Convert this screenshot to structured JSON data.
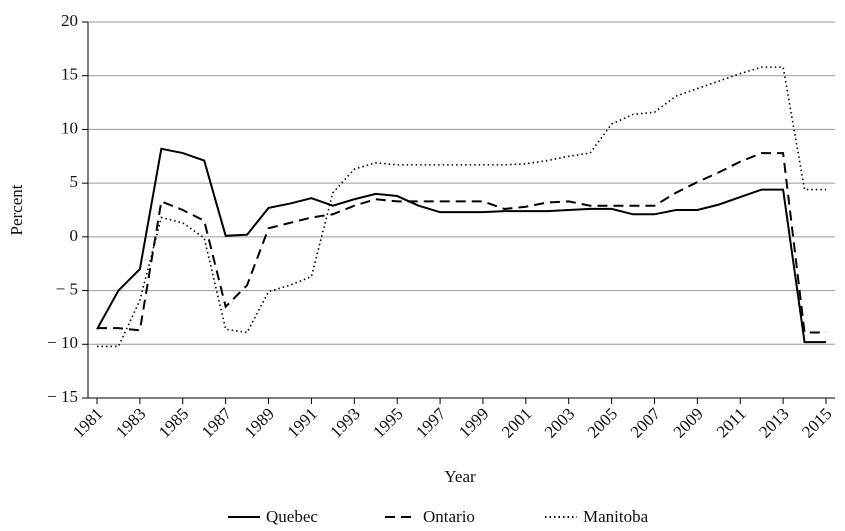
{
  "chart_data": {
    "type": "line",
    "x_label": "Year",
    "y_label": "Percent",
    "x": [
      1981,
      1982,
      1983,
      1984,
      1985,
      1986,
      1987,
      1988,
      1989,
      1990,
      1991,
      1992,
      1993,
      1994,
      1995,
      1996,
      1997,
      1998,
      1999,
      2000,
      2001,
      2002,
      2003,
      2004,
      2005,
      2006,
      2007,
      2008,
      2009,
      2010,
      2011,
      2012,
      2013,
      2014,
      2015
    ],
    "xlim": [
      1981,
      2015
    ],
    "xticks": [
      1981,
      1983,
      1985,
      1987,
      1989,
      1991,
      1993,
      1995,
      1997,
      1999,
      2001,
      2003,
      2005,
      2007,
      2009,
      2011,
      2013,
      2015
    ],
    "ylim": [
      -15,
      20
    ],
    "yticks": [
      {
        "value": -15,
        "label": "− 15"
      },
      {
        "value": -10,
        "label": "− 10"
      },
      {
        "value": -5,
        "label": "− 5"
      },
      0,
      5,
      10,
      15,
      20
    ],
    "grid": true,
    "series": [
      {
        "name": "Quebec",
        "color": "#000000",
        "dash": "solid",
        "values": [
          -8.6,
          -5,
          -3,
          8.2,
          7.8,
          7.1,
          0.1,
          0.2,
          2.7,
          3.1,
          3.6,
          2.9,
          3.5,
          4.0,
          3.8,
          2.9,
          2.3,
          2.3,
          2.3,
          2.4,
          2.4,
          2.4,
          2.5,
          2.6,
          2.6,
          2.1,
          2.1,
          2.5,
          2.5,
          3.0,
          3.7,
          4.4,
          4.4,
          -9.8,
          -9.8
        ]
      },
      {
        "name": "Ontario",
        "color": "#000000",
        "dash": "dashed",
        "values": [
          -8.5,
          -8.5,
          -8.7,
          3.3,
          2.5,
          1.5,
          -6.5,
          -4.5,
          0.8,
          1.3,
          1.8,
          2.1,
          2.9,
          3.5,
          3.3,
          3.3,
          3.3,
          3.3,
          3.3,
          2.6,
          2.8,
          3.2,
          3.3,
          2.9,
          2.9,
          2.9,
          2.9,
          4.1,
          5.1,
          6.0,
          7.0,
          7.8,
          7.8,
          -8.9,
          -8.9
        ]
      },
      {
        "name": "Manitoba",
        "color": "#000000",
        "dash": "dotted",
        "values": [
          -10.2,
          -10.2,
          -5.9,
          1.8,
          1.3,
          -0.1,
          -8.6,
          -8.9,
          -5.1,
          -4.5,
          -3.7,
          4.1,
          6.3,
          6.9,
          6.7,
          6.7,
          6.7,
          6.7,
          6.7,
          6.7,
          6.8,
          7.1,
          7.5,
          7.8,
          10.5,
          11.4,
          11.6,
          13.1,
          13.8,
          14.5,
          15.2,
          15.8,
          15.8,
          4.4,
          4.4
        ]
      }
    ]
  }
}
